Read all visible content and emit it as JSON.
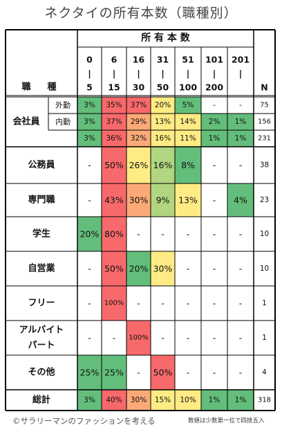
{
  "title": "ネクタイの所有本数（職種別）",
  "header": {
    "group_label": "所 有 本 数",
    "row_label_a": "職",
    "row_label_b": "種",
    "n_label": "N",
    "bins": [
      [
        "0",
        "|",
        "5"
      ],
      [
        "6",
        "|",
        "15"
      ],
      [
        "16",
        "|",
        "30"
      ],
      [
        "31",
        "|",
        "50"
      ],
      [
        "51",
        "|",
        "100"
      ],
      [
        "101",
        "|",
        "200"
      ],
      [
        "201",
        "|",
        ""
      ]
    ]
  },
  "colors": {
    "high": "#f8696b",
    "orange": "#fbaa77",
    "yellow": "#ffeb84",
    "lightgreen": "#b1d580",
    "green": "#63be7b",
    "none": "#ffffff"
  },
  "chart_data": {
    "type": "table",
    "columns": [
      "0-5",
      "6-15",
      "16-30",
      "31-50",
      "51-100",
      "101-200",
      "201-"
    ],
    "rows": [
      {
        "group": "会社員",
        "sub": "外勤",
        "values": [
          "3%",
          "35%",
          "37%",
          "20%",
          "5%",
          "-",
          "-"
        ],
        "n": "75",
        "fills": [
          "green",
          "high",
          "high",
          "yellow",
          "green",
          "none",
          "none"
        ]
      },
      {
        "group": "会社員",
        "sub": "内勤",
        "values": [
          "3%",
          "37%",
          "29%",
          "13%",
          "14%",
          "2%",
          "1%"
        ],
        "n": "156",
        "fills": [
          "green",
          "high",
          "orange",
          "yellow",
          "yellow",
          "green",
          "green"
        ]
      },
      {
        "group": "会社員",
        "sub": "",
        "values": [
          "3%",
          "36%",
          "32%",
          "16%",
          "11%",
          "1%",
          "1%"
        ],
        "n": "231",
        "fills": [
          "green",
          "high",
          "orange",
          "yellow",
          "yellow",
          "green",
          "green"
        ]
      },
      {
        "group": "公務員",
        "sub": "",
        "values": [
          "-",
          "50%",
          "26%",
          "16%",
          "8%",
          "-",
          "-"
        ],
        "n": "38",
        "fills": [
          "none",
          "high",
          "yellow",
          "lightgreen",
          "green",
          "none",
          "none"
        ]
      },
      {
        "group": "専門職",
        "sub": "",
        "values": [
          "-",
          "43%",
          "30%",
          "9%",
          "13%",
          "-",
          "4%"
        ],
        "n": "23",
        "fills": [
          "none",
          "high",
          "orange",
          "lightgreen",
          "yellow",
          "none",
          "green"
        ]
      },
      {
        "group": "学生",
        "sub": "",
        "values": [
          "20%",
          "80%",
          "-",
          "-",
          "-",
          "-",
          "-"
        ],
        "n": "10",
        "fills": [
          "green",
          "high",
          "none",
          "none",
          "none",
          "none",
          "none"
        ]
      },
      {
        "group": "自営業",
        "sub": "",
        "values": [
          "-",
          "50%",
          "20%",
          "30%",
          "-",
          "-",
          "-"
        ],
        "n": "10",
        "fills": [
          "none",
          "high",
          "green",
          "yellow",
          "none",
          "none",
          "none"
        ]
      },
      {
        "group": "フリー",
        "sub": "",
        "values": [
          "-",
          "100%",
          "-",
          "-",
          "-",
          "-",
          "-"
        ],
        "n": "1",
        "fills": [
          "none",
          "high",
          "none",
          "none",
          "none",
          "none",
          "none"
        ]
      },
      {
        "group": "アルバイト\nパート",
        "sub": "",
        "values": [
          "-",
          "-",
          "100%",
          "-",
          "-",
          "-",
          "-"
        ],
        "n": "1",
        "fills": [
          "none",
          "none",
          "high",
          "none",
          "none",
          "none",
          "none"
        ]
      },
      {
        "group": "その他",
        "sub": "",
        "values": [
          "25%",
          "25%",
          "-",
          "50%",
          "-",
          "-",
          "-"
        ],
        "n": "4",
        "fills": [
          "green",
          "green",
          "none",
          "high",
          "none",
          "none",
          "none"
        ]
      },
      {
        "group": "総計",
        "sub": "",
        "values": [
          "3%",
          "40%",
          "30%",
          "15%",
          "10%",
          "1%",
          "1%"
        ],
        "n": "318",
        "fills": [
          "green",
          "high",
          "orange",
          "yellow",
          "yellow",
          "green",
          "green"
        ]
      }
    ]
  },
  "footer": {
    "credit": "©サラリーマンのファッションを考える",
    "note": "数値は少数第一位で四捨五入"
  }
}
